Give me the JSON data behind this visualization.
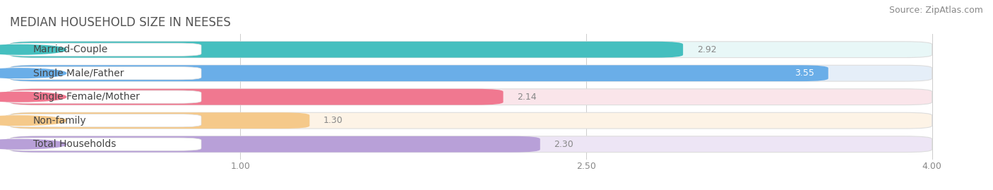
{
  "title": "MEDIAN HOUSEHOLD SIZE IN NEESES",
  "source": "Source: ZipAtlas.com",
  "categories": [
    "Married-Couple",
    "Single Male/Father",
    "Single Female/Mother",
    "Non-family",
    "Total Households"
  ],
  "values": [
    2.92,
    3.55,
    2.14,
    1.3,
    2.3
  ],
  "bar_colors": [
    "#45BFBF",
    "#6AAEE8",
    "#F07890",
    "#F5C98A",
    "#B8A0D8"
  ],
  "bar_bg_colors": [
    "#E8F7F7",
    "#E5EEF8",
    "#FAE5EA",
    "#FDF3E6",
    "#EDE5F5"
  ],
  "xlim": [
    0,
    4.2
  ],
  "xmin": 0,
  "xmax": 4.0,
  "xticks": [
    1.0,
    2.5,
    4.0
  ],
  "title_fontsize": 12,
  "source_fontsize": 9,
  "bar_label_fontsize": 10,
  "value_fontsize": 9,
  "bar_height": 0.68,
  "background_color": "#FFFFFF",
  "label_text_colors": [
    "#555555",
    "#555555",
    "#555555",
    "#888855",
    "#555555"
  ],
  "value_colors_inside": [
    "#FFFFFF",
    "#FFFFFF",
    "#888888",
    "#888888",
    "#888888"
  ]
}
